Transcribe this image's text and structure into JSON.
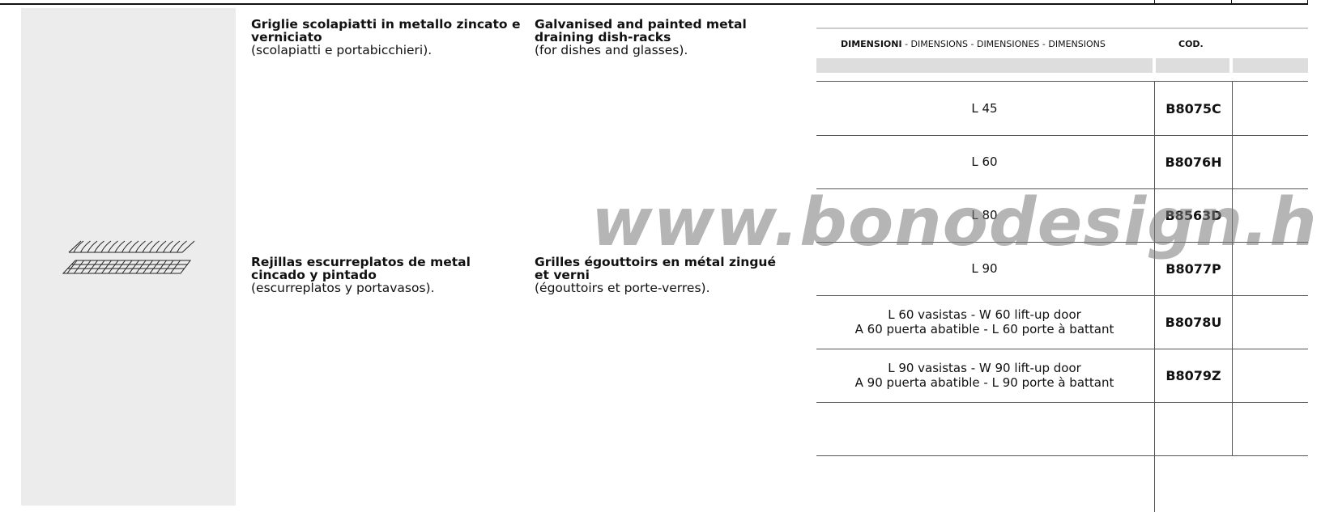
{
  "products": [
    {
      "title": "Griglie scolapiatti in metallo zincato e verniciato",
      "subtitle": "(scolapiatti e portabicchieri)."
    },
    {
      "title": "Galvanised and painted metal draining dish-racks",
      "subtitle": "(for dishes and glasses)."
    },
    {
      "title": "Rejillas escurreplatos de metal cincado y pintado",
      "subtitle": "(escurreplatos y portavasos)."
    },
    {
      "title": "Grilles égouttoirs en métal zingué et verni",
      "subtitle": "(égouttoirs et porte-verres)."
    }
  ],
  "table": {
    "header": {
      "dimensions_bold": "DIMENSIONI",
      "dimensions_rest": "- DIMENSIONS - DIMENSIONES - DIMENSIONS",
      "code": "COD."
    },
    "rows": [
      {
        "dimension": [
          "L  45"
        ],
        "code": "B8075C"
      },
      {
        "dimension": [
          "L  60"
        ],
        "code": "B8076H"
      },
      {
        "dimension": [
          "L  80"
        ],
        "code": "B8563D"
      },
      {
        "dimension": [
          "L  90"
        ],
        "code": "B8077P"
      },
      {
        "dimension": [
          "L 60 vasistas - W 60 lift-up door",
          "A 60 puerta abatible - L 60 porte à battant"
        ],
        "code": "B8078U"
      },
      {
        "dimension": [
          "L 90 vasistas - W 90 lift-up door",
          "A 90 puerta abatible - L 90 porte à battant"
        ],
        "code": "B8079Z"
      }
    ]
  },
  "watermark": "www.bonodesign.hu"
}
